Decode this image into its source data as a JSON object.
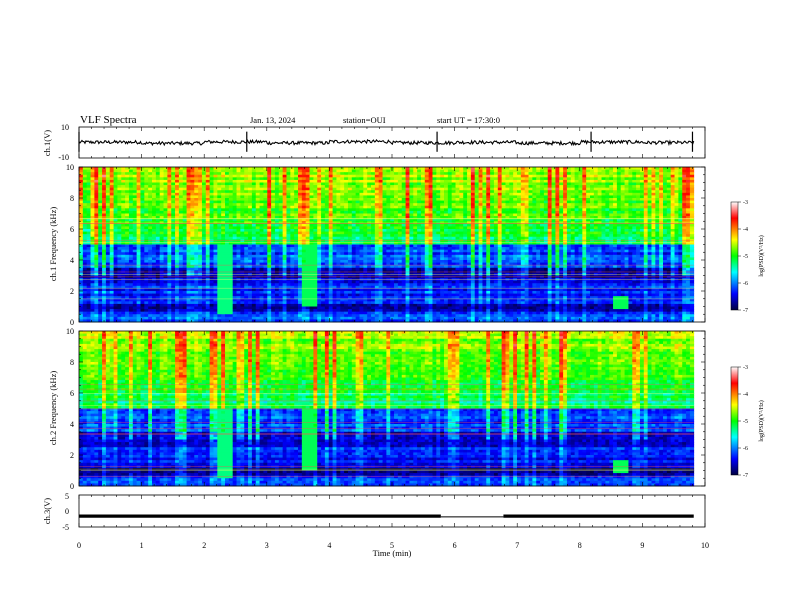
{
  "header": {
    "title": "VLF Spectra",
    "date": "Jan. 13, 2024",
    "station": "station=OUI",
    "start": "start UT =  17:30:0"
  },
  "chart_data": [
    {
      "type": "line",
      "panel": "ch1-waveform",
      "ylabel": "ch.1(V)",
      "ylim": [
        -10,
        10
      ],
      "ytick_labels": [
        "10",
        "-10"
      ],
      "baseline": 0,
      "spikes_min": [
        0.0,
        2.68,
        5.72,
        8.18,
        9.8
      ],
      "series": [
        {
          "values": [
            0.2,
            -0.5,
            0.4,
            -0.3,
            0.6,
            -0.2,
            0.1,
            -0.4,
            0.3,
            -0.1
          ]
        }
      ]
    },
    {
      "type": "heatmap",
      "panel": "ch1-spectrogram",
      "ylabel": "ch.1 Frequency (kHz)",
      "ylim": [
        0,
        10
      ],
      "yticks": [
        0,
        2,
        4,
        6,
        8,
        10
      ],
      "color_range": [
        -7,
        -3
      ],
      "colorbar_ticks": [
        -3,
        -4,
        -5,
        -6,
        -7
      ],
      "colorbar_label": "log(PSD)(V²/Hz)",
      "features": [
        {
          "t_min": 2.35,
          "f_khz": [
            0.5,
            6.5
          ],
          "level": -5.3
        },
        {
          "t_min": 3.7,
          "f_khz": [
            1.0,
            5.0
          ],
          "level": -5.2
        },
        {
          "t_min": 8.65,
          "f_khz": [
            0.8,
            1.6
          ],
          "level": -5.2
        }
      ]
    },
    {
      "type": "heatmap",
      "panel": "ch2-spectrogram",
      "ylabel": "ch.2 Frequency (kHz)",
      "ylim": [
        0,
        10
      ],
      "yticks": [
        0,
        2,
        4,
        6,
        8,
        10
      ],
      "color_range": [
        -7,
        -3
      ],
      "colorbar_ticks": [
        -3,
        -4,
        -5,
        -6,
        -7
      ],
      "colorbar_label": "log(PSD)(V²/Hz)",
      "features": [
        {
          "t_min": 2.35,
          "f_khz": [
            0.5,
            6.5
          ],
          "level": -5.3
        },
        {
          "t_min": 3.7,
          "f_khz": [
            1.0,
            5.0
          ],
          "level": -5.2
        },
        {
          "t_min": 8.65,
          "f_khz": [
            0.8,
            1.6
          ],
          "level": -5.2
        }
      ]
    },
    {
      "type": "line",
      "panel": "ch3-waveform",
      "ylabel": "ch.3(V)",
      "xlabel": "Time (min)",
      "ylim": [
        -5,
        5
      ],
      "ytick_labels": [
        "5",
        "0",
        "-5"
      ],
      "xlim": [
        0,
        10
      ],
      "xticks": [
        0,
        1,
        2,
        3,
        4,
        5,
        6,
        7,
        8,
        9,
        10
      ],
      "series": [
        {
          "x": [
            0,
            5.78
          ],
          "values": [
            -1.6,
            -1.6
          ]
        },
        {
          "x": [
            5.78,
            6.78
          ],
          "values": [
            -1.85,
            -1.85
          ]
        },
        {
          "x": [
            6.78,
            9.82
          ],
          "values": [
            -1.6,
            -1.6
          ]
        }
      ]
    }
  ]
}
